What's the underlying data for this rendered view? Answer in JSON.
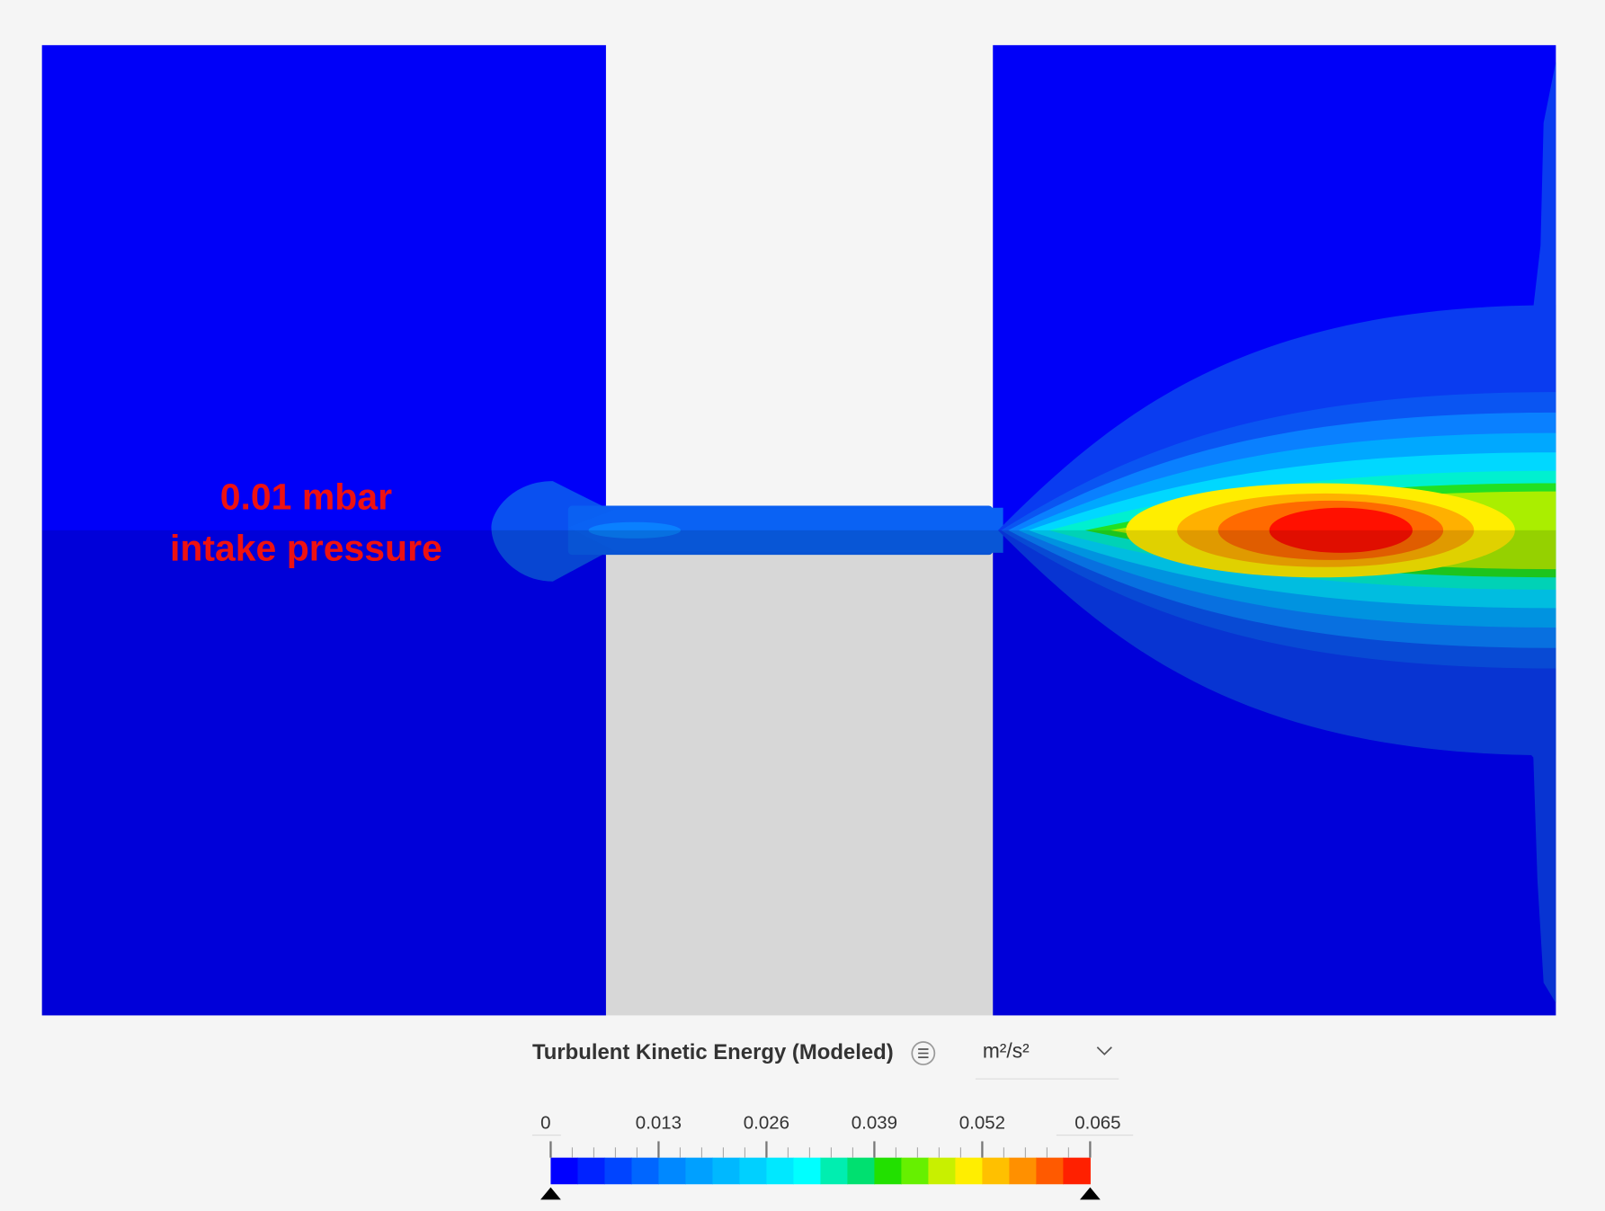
{
  "annotation": {
    "lines": [
      "0.01 mbar",
      "intake pressure"
    ],
    "color": "#ee1111"
  },
  "legend": {
    "title": "Turbulent Kinetic Energy (Modeled)",
    "unit": "m²/s²",
    "lim": [
      0,
      0.065
    ],
    "ticks": [
      0,
      0.013,
      0.026,
      0.039,
      0.052,
      0.065
    ],
    "colors": [
      "#0000ff",
      "#0022ff",
      "#0044ff",
      "#0066ff",
      "#0088ff",
      "#00a0ff",
      "#00b8ff",
      "#00d0ff",
      "#00e8ff",
      "#00ffff",
      "#00eeb0",
      "#00e070",
      "#22e000",
      "#66f000",
      "#c8f000",
      "#ffee00",
      "#ffc000",
      "#ff9000",
      "#ff5a00",
      "#ff2000"
    ]
  }
}
